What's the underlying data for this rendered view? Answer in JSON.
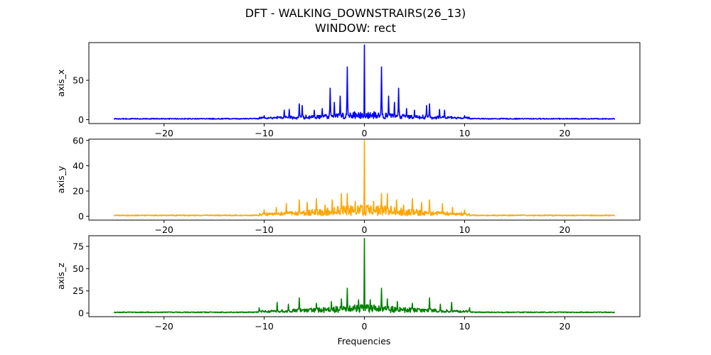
{
  "chart_data": {
    "title_line1": "DFT - WALKING_DOWNSTRAIRS(26_13)",
    "title_line2": "WINDOW: rect",
    "xlabel": "Frequencies",
    "type": "line",
    "xlim": [
      -27.5,
      27.5
    ],
    "x_range": [
      -25,
      25
    ],
    "xticks": [
      -20,
      -10,
      0,
      10,
      20
    ],
    "xtick_labels": [
      "−20",
      "−10",
      "0",
      "10",
      "20"
    ],
    "subplots": [
      {
        "ylabel": "axis_x",
        "color": "#0000ff",
        "ylim": [
          -5,
          98
        ],
        "yticks": [
          0,
          50
        ],
        "ytick_labels": [
          "0",
          "50"
        ],
        "baseline": 1.2,
        "peaks": [
          [
            0,
            95
          ],
          [
            -1.7,
            67
          ],
          [
            1.7,
            67
          ],
          [
            -3.4,
            40
          ],
          [
            3.4,
            40
          ],
          [
            -2.4,
            30
          ],
          [
            2.4,
            30
          ],
          [
            -3.0,
            22
          ],
          [
            3.0,
            22
          ],
          [
            -6.5,
            20
          ],
          [
            6.5,
            20
          ],
          [
            -6.2,
            18
          ],
          [
            6.2,
            18
          ],
          [
            -7.5,
            13
          ],
          [
            7.5,
            13
          ],
          [
            -8.0,
            12
          ],
          [
            8.0,
            12
          ],
          [
            -5.0,
            12
          ],
          [
            5.0,
            12
          ],
          [
            -4.2,
            14
          ],
          [
            4.2,
            14
          ],
          [
            -1.0,
            10
          ],
          [
            1.0,
            10
          ],
          [
            -10,
            5
          ],
          [
            10,
            5
          ]
        ]
      },
      {
        "ylabel": "axis_y",
        "color": "#ffa500",
        "ylim": [
          -3,
          61
        ],
        "yticks": [
          0,
          20,
          40,
          60
        ],
        "ytick_labels": [
          "0",
          "20",
          "40",
          "60"
        ],
        "baseline": 0.8,
        "peaks": [
          [
            0,
            60
          ],
          [
            -1.7,
            18
          ],
          [
            1.7,
            18
          ],
          [
            -2.3,
            18
          ],
          [
            2.3,
            18
          ],
          [
            -6.5,
            13
          ],
          [
            6.5,
            13
          ],
          [
            -4.8,
            14
          ],
          [
            4.8,
            14
          ],
          [
            -3.2,
            13
          ],
          [
            3.2,
            13
          ],
          [
            -5.7,
            11
          ],
          [
            5.7,
            11
          ],
          [
            -7.8,
            10
          ],
          [
            7.8,
            10
          ],
          [
            -0.9,
            12
          ],
          [
            0.9,
            12
          ],
          [
            -3.9,
            9
          ],
          [
            3.9,
            9
          ],
          [
            -10,
            5
          ],
          [
            10,
            5
          ],
          [
            -8.8,
            7
          ],
          [
            8.8,
            7
          ]
        ]
      },
      {
        "ylabel": "axis_z",
        "color": "#008000",
        "ylim": [
          -4,
          87
        ],
        "yticks": [
          0,
          25,
          50,
          75
        ],
        "ytick_labels": [
          "0",
          "25",
          "50",
          "75"
        ],
        "baseline": 1.0,
        "peaks": [
          [
            0,
            84
          ],
          [
            -1.7,
            28
          ],
          [
            1.7,
            28
          ],
          [
            -6.5,
            17
          ],
          [
            6.5,
            17
          ],
          [
            -2.3,
            16
          ],
          [
            2.3,
            16
          ],
          [
            -0.6,
            15
          ],
          [
            0.6,
            15
          ],
          [
            -3.3,
            13
          ],
          [
            3.3,
            13
          ],
          [
            -8.7,
            12
          ],
          [
            8.7,
            12
          ],
          [
            -4.8,
            11
          ],
          [
            4.8,
            11
          ],
          [
            -7.6,
            10
          ],
          [
            7.6,
            10
          ],
          [
            -10.5,
            6
          ],
          [
            10.5,
            6
          ]
        ]
      }
    ]
  }
}
